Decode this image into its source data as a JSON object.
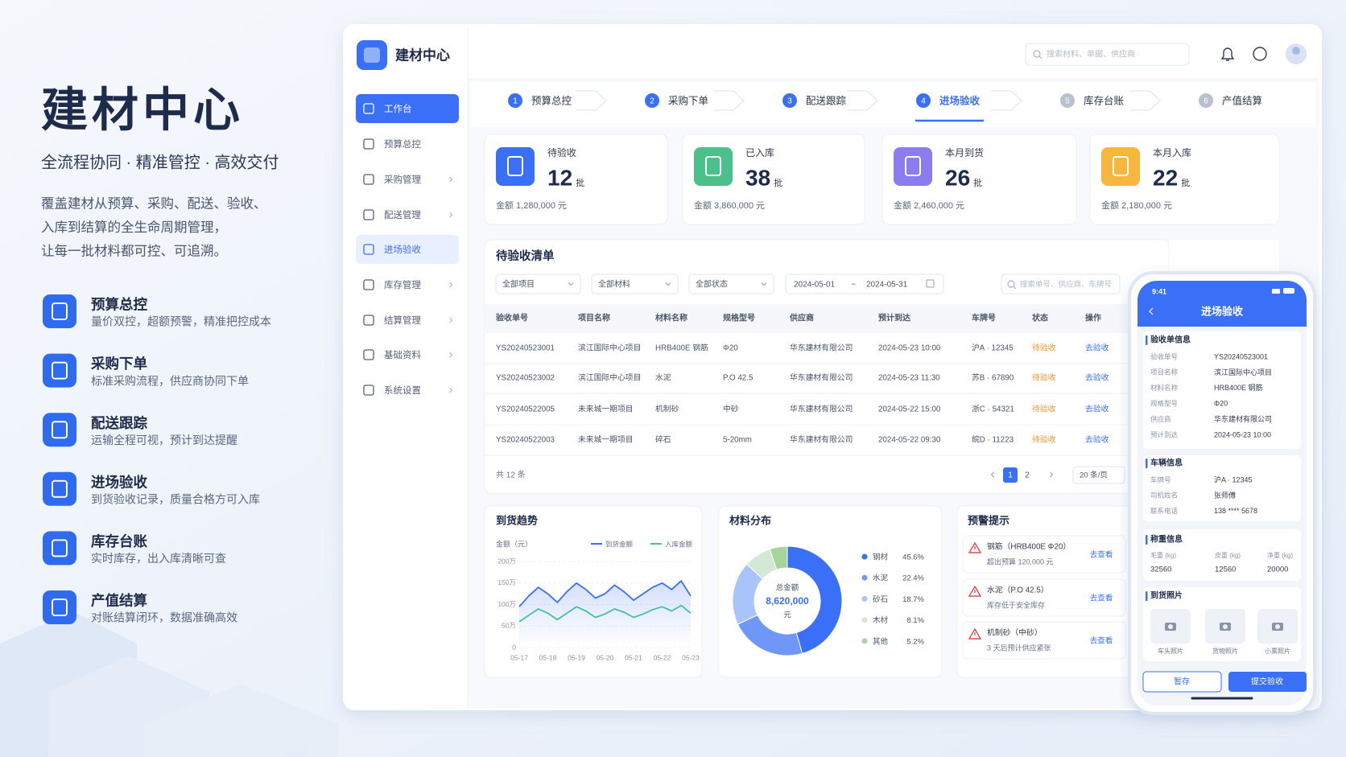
{
  "hero": {
    "title": "建材中心",
    "subtitle": "全流程协同 · 精准管控 · 高效交付",
    "description": [
      "覆盖建材从预算、采购、配送、验收、",
      "入库到结算的全生命周期管理，",
      "让每一批材料都可控、可追溯。"
    ],
    "features": [
      {
        "title": "预算总控",
        "desc": "量价双控，超额预警，精准把控成本"
      },
      {
        "title": "采购下单",
        "desc": "标准采购流程，供应商协同下单"
      },
      {
        "title": "配送跟踪",
        "desc": "运输全程可视，预计到达提醒"
      },
      {
        "title": "进场验收",
        "desc": "到货验收记录，质量合格方可入库"
      },
      {
        "title": "库存台账",
        "desc": "实时库存，出入库清晰可查"
      },
      {
        "title": "产值结算",
        "desc": "对账结算闭环，数据准确高效"
      }
    ]
  },
  "app": {
    "brand": "建材中心",
    "search_placeholder": "搜索材料、单据、供应商",
    "sidebar": [
      "工作台",
      "预算总控",
      "采购管理",
      "配送管理",
      "进场验收",
      "库存管理",
      "结算管理",
      "基础资料",
      "系统设置"
    ],
    "steps": [
      {
        "number": 1,
        "label": "预算总控"
      },
      {
        "number": 2,
        "label": "采购下单"
      },
      {
        "number": 3,
        "label": "配送跟踪"
      },
      {
        "number": 4,
        "label": "进场验收"
      },
      {
        "number": 5,
        "label": "库存台账"
      },
      {
        "number": 6,
        "label": "产值结算"
      }
    ],
    "stats": [
      {
        "label": "待验收",
        "value": 12,
        "unit": "批",
        "amount": "金额 1,280,000 元"
      },
      {
        "label": "已入库",
        "value": 38,
        "unit": "批",
        "amount": "金额 3,860,000 元"
      },
      {
        "label": "本月到货",
        "value": 26,
        "unit": "批",
        "amount": "金额 2,460,000 元"
      },
      {
        "label": "本月入库",
        "value": 22,
        "unit": "批",
        "amount": "金额 2,180,000 元"
      }
    ],
    "list": {
      "title": "待验收清单",
      "filters": [
        "全部项目",
        "全部材料",
        "全部状态"
      ],
      "date_from": "2024-05-01",
      "date_sep": "~",
      "date_to": "2024-05-31",
      "search_placeholder": "搜索单号、供应商、车牌号",
      "columns": [
        "验收单号",
        "项目名称",
        "材料名称",
        "规格型号",
        "供应商",
        "预计到达",
        "车牌号",
        "状态",
        "操作"
      ],
      "rows": [
        [
          "YS20240523001",
          "滨江国际中心项目",
          "HRB400E 钢筋",
          "Φ20",
          "华东建材有限公司",
          "2024-05-23 10:00",
          "沪A · 12345",
          "待验收",
          "去验收"
        ],
        [
          "YS20240523002",
          "滨江国际中心项目",
          "水泥",
          "P.O 42.5",
          "华东建材有限公司",
          "2024-05-23 11:30",
          "苏B · 67890",
          "待验收",
          "去验收"
        ],
        [
          "YS20240522005",
          "未来城一期项目",
          "机制砂",
          "中砂",
          "华东建材有限公司",
          "2024-05-22 15:00",
          "浙C · 54321",
          "待验收",
          "去验收"
        ],
        [
          "YS20240522003",
          "未来城一期项目",
          "碎石",
          "5-20mm",
          "华东建材有限公司",
          "2024-05-22 09:30",
          "皖D · 11223",
          "待验收",
          "去验收"
        ]
      ],
      "total": "共 12 条",
      "pages": [
        1,
        2
      ],
      "page_size": "20 条/页"
    },
    "alerts": {
      "title": "预警提示",
      "items": [
        {
          "title": "钢筋（HRB400E Φ20）",
          "desc": "超出预算 120,000 元",
          "action": "去查看"
        },
        {
          "title": "水泥（P.O 42.5）",
          "desc": "库存低于安全库存",
          "action": "去查看"
        },
        {
          "title": "机制砂（中砂）",
          "desc": "3 天后预计供应紧张",
          "action": "去查看"
        }
      ]
    }
  },
  "chart_data": [
    {
      "type": "line",
      "title": "到货趋势",
      "ylabel": "金额（元）",
      "categories": [
        "05-17",
        null,
        null,
        "05-18",
        null,
        null,
        "05-19",
        null,
        null,
        "05-20",
        null,
        null,
        "05-21",
        null,
        null,
        "05-22",
        null,
        null,
        "05-23"
      ],
      "series": [
        {
          "name": "到货金额",
          "color": "#3a6ff7",
          "values": [
            95,
            120,
            140,
            125,
            105,
            130,
            150,
            135,
            115,
            125,
            145,
            130,
            110,
            125,
            140,
            150,
            135,
            155,
            120
          ]
        },
        {
          "name": "入库金额",
          "color": "#45c29a",
          "values": [
            60,
            75,
            90,
            80,
            65,
            80,
            95,
            85,
            70,
            78,
            90,
            82,
            70,
            78,
            88,
            95,
            85,
            98,
            80
          ]
        }
      ],
      "ylim": [
        0,
        200
      ],
      "yticks": [
        0,
        {
          "value": 50,
          "label": "50万"
        },
        {
          "value": 100,
          "label": "100万"
        },
        {
          "value": 150,
          "label": "150万"
        },
        {
          "value": 200,
          "label": "200万"
        }
      ],
      "grid": true
    },
    {
      "type": "pie",
      "title": "材料分布",
      "center_label": "总金额",
      "center_value": "8,620,000",
      "center_unit": "元",
      "categories": [
        "钢材",
        "水泥",
        "砂石",
        "木材",
        "其他"
      ],
      "values": [
        45.6,
        22.4,
        18.7,
        8.1,
        5.2
      ],
      "value_labels": [
        "45.6%",
        "22.4%",
        "18.7%",
        "8.1%",
        "5.2%"
      ],
      "colors": [
        "#3a6ff7",
        "#6f97f8",
        "#a9c3fb",
        "#d4e8d6",
        "#a6d49c"
      ]
    }
  ],
  "phone": {
    "time": "9:41",
    "title": "进场验收",
    "sections": [
      {
        "title": "验收单信息",
        "fields": [
          {
            "label": "验收单号",
            "value": "YS20240523001"
          },
          {
            "label": "项目名称",
            "value": "滨江国际中心项目"
          },
          {
            "label": "材料名称",
            "value": "HRB400E 钢筋"
          },
          {
            "label": "规格型号",
            "value": "Φ20"
          },
          {
            "label": "供应商",
            "value": "华东建材有限公司"
          },
          {
            "label": "预计到达",
            "value": "2024-05-23 10:00"
          }
        ]
      },
      {
        "title": "车辆信息",
        "fields": [
          {
            "label": "车牌号",
            "value": "沪A · 12345"
          },
          {
            "label": "司机姓名",
            "value": "张师傅"
          },
          {
            "label": "联系电话",
            "value": "138 **** 5678"
          }
        ]
      },
      {
        "title": "称重信息",
        "fields": [
          {
            "label": "毛重 (kg)",
            "value": 32560
          },
          {
            "label": "皮重 (kg)",
            "value": 12560
          },
          {
            "label": "净重 (kg)",
            "value": 20000
          }
        ]
      },
      {
        "title": "到货照片",
        "photos": [
          "车头照片",
          "货物照片",
          "小票照片"
        ]
      }
    ],
    "buttons": [
      "暂存",
      "提交验收"
    ]
  }
}
